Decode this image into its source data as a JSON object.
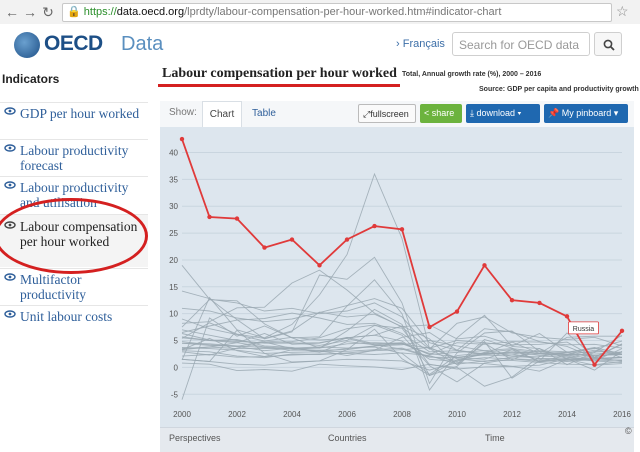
{
  "browser": {
    "back_icon": "back-arrow-icon",
    "forward_icon": "forward-arrow-icon",
    "reload_icon": "reload-icon",
    "url_scheme": "https://",
    "url_domain": "data.oecd.org",
    "url_path": "/lprdty/labour-compensation-per-hour-worked.htm#indicator-chart"
  },
  "header": {
    "logo_text": "OECD",
    "site_name": "Data",
    "language_link": "Français",
    "search_placeholder": "Search for OECD data"
  },
  "sidebar": {
    "title": "Indicators",
    "items": [
      {
        "label": "GDP per hour worked",
        "active": false
      },
      {
        "label": "Labour productivity forecast",
        "active": false
      },
      {
        "label": "Labour productivity and utilisation",
        "active": false
      },
      {
        "label": "Labour compensation per hour worked",
        "active": true
      },
      {
        "label": "Multifactor productivity",
        "active": false
      },
      {
        "label": "Unit labour costs",
        "active": false
      }
    ]
  },
  "main": {
    "title": "Labour compensation per hour worked",
    "subtitle": "Total, Annual growth rate (%), 2000 – 2016",
    "source": "Source: GDP per capita and productivity growth"
  },
  "toolbar": {
    "show_label": "Show:",
    "tabs": [
      "Chart",
      "Table"
    ],
    "active_tab": "Chart",
    "fullscreen": "fullscreen",
    "share": "share",
    "download": "download",
    "pinboard": "My pinboard"
  },
  "bottom": {
    "perspectives": "Perspectives",
    "countries": "Countries",
    "time": "Time",
    "copyright": "©"
  },
  "colors": {
    "accent_red": "#d42020",
    "highlight_series": "#e03a3a",
    "other_series": "#9aa8b2",
    "chart_bg": "#dde6ee",
    "oecd_blue": "#1d4f86",
    "share_green": "#6cb33e",
    "button_blue": "#1f68b0"
  },
  "chart_data": {
    "type": "line",
    "x": [
      2000,
      2001,
      2002,
      2003,
      2004,
      2005,
      2006,
      2007,
      2008,
      2009,
      2010,
      2011,
      2012,
      2013,
      2014,
      2015,
      2016
    ],
    "x_ticks": [
      "2000",
      "2002",
      "2004",
      "2006",
      "2008",
      "2010",
      "2012",
      "2014",
      "2016"
    ],
    "y_ticks": [
      "-5",
      "0",
      "5",
      "10",
      "15",
      "20",
      "25",
      "30",
      "35",
      "40"
    ],
    "ylim": [
      -7,
      44
    ],
    "highlight_label": "Russia",
    "series": [
      {
        "name": "Russia",
        "highlight": true,
        "values": [
          42.5,
          28,
          27.7,
          22.3,
          23.8,
          19,
          23.8,
          26.3,
          25.7,
          7.5,
          10.4,
          19,
          12.5,
          12,
          9.5,
          0.5,
          6.8
        ]
      },
      {
        "values": [
          11,
          10.5,
          9.2,
          8.5,
          9,
          10.2,
          11.5,
          12.8,
          11,
          4.6,
          3.2,
          7.2,
          6.6,
          4.8,
          3.9,
          1.8,
          2.9
        ]
      },
      {
        "values": [
          1.4,
          13,
          7,
          5.5,
          8,
          13.5,
          21,
          36,
          24,
          3.5,
          0.6,
          5.2,
          3.6,
          1,
          1.7,
          3,
          2.8
        ]
      },
      {
        "values": [
          19,
          12.7,
          12,
          10.5,
          11,
          10,
          10.5,
          12,
          9.4,
          3.6,
          5,
          4.6,
          4,
          6.3,
          2.8,
          3.5,
          4.9
        ]
      },
      {
        "values": [
          -6,
          9.2,
          5.8,
          7.7,
          5.5,
          3.6,
          6.8,
          10.8,
          8,
          -1.5,
          1.4,
          2.5,
          4.7,
          2.6,
          5.6,
          5.8,
          5.8
        ]
      },
      {
        "values": [
          7,
          6,
          5,
          4.5,
          4.5,
          4.6,
          5.5,
          6,
          4.9,
          1.5,
          1.1,
          2.8,
          3.3,
          2.6,
          2.4,
          2.2,
          2.4
        ]
      },
      {
        "values": [
          5.7,
          5,
          4.6,
          3.8,
          3.5,
          3.6,
          4.4,
          4.6,
          4.4,
          2.6,
          1.9,
          2.3,
          2.1,
          1.7,
          1.6,
          1.7,
          1.9
        ]
      },
      {
        "values": [
          4.5,
          4.4,
          4,
          3.7,
          3.2,
          3.2,
          3.3,
          4,
          4.4,
          3.6,
          1.8,
          2.6,
          2.5,
          1.6,
          1.4,
          1.5,
          1.8
        ]
      },
      {
        "values": [
          3.7,
          3.5,
          3.2,
          2.6,
          2.8,
          2.9,
          3,
          3.3,
          3.6,
          2,
          1.3,
          1.8,
          1.6,
          1.4,
          1.1,
          1.5,
          1.9
        ]
      },
      {
        "values": [
          6.3,
          5.1,
          4.8,
          4.6,
          4.8,
          5.5,
          7.2,
          7.9,
          6,
          0.3,
          -2.7,
          0.8,
          1.6,
          1.1,
          2.2,
          3.2,
          2.4
        ]
      },
      {
        "values": [
          3.1,
          2.9,
          2.1,
          1.8,
          2.5,
          2.4,
          2.7,
          3.1,
          3.3,
          3.7,
          1.6,
          1.1,
          1.9,
          2.1,
          1.9,
          1.2,
          1.4
        ]
      },
      {
        "values": [
          2.1,
          2.4,
          1.9,
          2,
          2.3,
          2.5,
          2.6,
          2.4,
          2.7,
          2.2,
          0.6,
          1.2,
          1.3,
          0.9,
          0.6,
          0.5,
          1.1
        ]
      },
      {
        "values": [
          5.5,
          5,
          5.2,
          4,
          3.7,
          2.9,
          3.5,
          4,
          4.2,
          5,
          4,
          3.1,
          3.5,
          2.9,
          2.5,
          2.3,
          2.4
        ]
      },
      {
        "values": [
          9,
          7.2,
          6.1,
          4.9,
          4.6,
          4.1,
          5,
          7.8,
          7.3,
          0.5,
          0,
          -3.5,
          -1.8,
          2,
          2.8,
          1.8,
          2.9
        ]
      },
      {
        "values": [
          3.5,
          3.8,
          4.6,
          6.3,
          4.3,
          4.5,
          5.6,
          4.4,
          4.6,
          2.4,
          2.8,
          3.1,
          2.1,
          2.6,
          2.1,
          1.2,
          3.5
        ]
      },
      {
        "values": [
          4.8,
          4.2,
          3.9,
          3.1,
          3.6,
          3.8,
          3.6,
          3.8,
          2.6,
          -1.3,
          2.2,
          2.7,
          2.5,
          3.1,
          2.9,
          2.7,
          2.4
        ]
      },
      {
        "values": [
          1.5,
          1.1,
          0.6,
          0.4,
          0.9,
          1.2,
          1.5,
          1.4,
          1.2,
          -0.5,
          0.9,
          0.7,
          0.2,
          0.4,
          1.6,
          1.2,
          0.9
        ]
      },
      {
        "values": [
          6.5,
          7.7,
          8.8,
          9.1,
          10.1,
          9.2,
          8,
          8.2,
          6.3,
          2.9,
          3.1,
          2.4,
          2.8,
          2.3,
          2.3,
          1.6,
          1.3
        ]
      },
      {
        "values": [
          5.4,
          8.3,
          6.2,
          5.4,
          6.8,
          10.3,
          9.4,
          9.9,
          7.6,
          7.9,
          5.3,
          5.8,
          4.2,
          4.3,
          4.7,
          1.9,
          4.3
        ]
      },
      {
        "values": [
          3.3,
          5.4,
          3.1,
          2,
          3.3,
          3.7,
          5.5,
          6,
          7.7,
          5.3,
          0.5,
          4.5,
          1.4,
          3.5,
          1.6,
          -0.5,
          3
        ]
      },
      {
        "values": [
          14.2,
          12.8,
          8.9,
          5.3,
          6.6,
          17.2,
          16.4,
          20.5,
          12,
          -3,
          5.5,
          9.7,
          3.9,
          3.5,
          0.5,
          2.8,
          6
        ]
      },
      {
        "values": [
          7.5,
          12.6,
          12.4,
          8.1,
          5.5,
          5.7,
          11.4,
          16.3,
          10,
          -4.2,
          2.7,
          6.4,
          6.8,
          3,
          2.4,
          3.6,
          1.8
        ]
      },
      {
        "values": [
          2.9,
          2.3,
          3.6,
          4.7,
          3.5,
          3.1,
          2.2,
          3.2,
          5.6,
          6.5,
          3.2,
          2.5,
          2.9,
          2.6,
          2.8,
          3.7,
          2.5
        ]
      },
      {
        "values": [
          8.2,
          8.5,
          11.1,
          11.2,
          15.7,
          18.1,
          14.4,
          10.1,
          7.5,
          3.4,
          8.2,
          9.4,
          6.4,
          5.6,
          5.2,
          5.6,
          4
        ]
      },
      {
        "values": [
          0.8,
          0.6,
          -0.6,
          -0.4,
          -0.7,
          0.6,
          0.3,
          0.1,
          -0.4,
          0.6,
          -0.3,
          0.1,
          0.2,
          -0.7,
          1.5,
          0.4,
          0.7
        ]
      },
      {
        "values": [
          4.5,
          4.1,
          3.9,
          4.9,
          5.6,
          5.1,
          5.4,
          4.2,
          4.5,
          2.4,
          4.6,
          4.3,
          4.8,
          4.7,
          4.2,
          4.3,
          3.6
        ]
      },
      {
        "values": [
          3.3,
          3.8,
          3.5,
          3.5,
          3.6,
          2.8,
          4.8,
          4.2,
          3.4,
          1.9,
          1.8,
          1.5,
          3.3,
          1.1,
          1.3,
          1.8,
          1.2
        ]
      },
      {
        "values": [
          1.5,
          1.1,
          6.9,
          2.6,
          1,
          1.2,
          3.3,
          7.1,
          1.6,
          -1.5,
          0.2,
          4.8,
          -2,
          1.2,
          6.4,
          1.9,
          4.4
        ]
      }
    ]
  }
}
